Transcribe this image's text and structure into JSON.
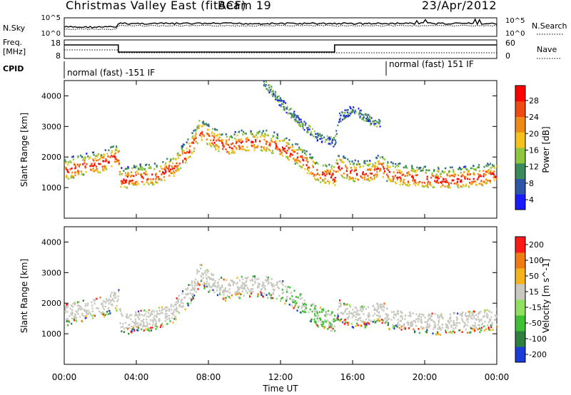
{
  "header": {
    "station": "Christmas Valley East (fitACF)",
    "beam": "Beam 19",
    "date": "23/Apr/2012"
  },
  "noise_panel": {
    "left_label": "N.Sky",
    "right_label": "N.Search",
    "left_ticks": [
      "10^5",
      "10^0"
    ],
    "right_ticks": [
      "10^5",
      "10^0"
    ]
  },
  "freq_panel": {
    "left_label_1": "Freq.",
    "left_label_2": "[MHz]",
    "right_label": "Nave",
    "left_ticks": [
      "18",
      "8"
    ],
    "right_ticks": [
      "60",
      "0"
    ]
  },
  "cpid": {
    "label": "CPID",
    "mode_1": "normal (fast) -151 IF",
    "mode_2": "normal (fast) 151 IF"
  },
  "x_axis": {
    "label": "Time UT",
    "ticks": [
      "00:00",
      "04:00",
      "08:00",
      "12:00",
      "16:00",
      "20:00",
      "00:00"
    ]
  },
  "power_panel": {
    "ylabel": "Slant Range [km]",
    "yticks": [
      "4000",
      "3000",
      "2000",
      "1000"
    ],
    "colorbar_label": "Power [dB]",
    "colorbar_ticks": [
      "28",
      "24",
      "20",
      "16",
      "12",
      "8",
      "4"
    ],
    "colors": [
      "#1a1aff",
      "#2f57a8",
      "#3a8c5a",
      "#8ec63f",
      "#f4c21b",
      "#f08a16",
      "#ee4a12",
      "#ff0000"
    ]
  },
  "velocity_panel": {
    "ylabel": "Slant Range [km]",
    "yticks": [
      "4000",
      "3000",
      "2000",
      "1000"
    ],
    "colorbar_label": "Velocity [m s^-1]",
    "colorbar_ticks": [
      "200",
      "100",
      "50",
      "15",
      "-15",
      "-50",
      "-100",
      "-200"
    ],
    "colors": [
      "#1a3cd9",
      "#2f7f3f",
      "#3fbf33",
      "#90e060",
      "#c8c8c0",
      "#f5b21a",
      "#f07b12",
      "#ff1a1a"
    ]
  },
  "chart_data": [
    {
      "type": "heatmap",
      "title": "Power",
      "xlabel": "Time UT",
      "ylabel": "Slant Range [km]",
      "xlim_hours": [
        0,
        24
      ],
      "ylim_km": [
        0,
        4500
      ],
      "colorbar": "Power [dB]",
      "colorbar_range": [
        0,
        32
      ],
      "band_main_km": [
        [
          0,
          1700
        ],
        [
          1,
          1850
        ],
        [
          2,
          1950
        ],
        [
          3,
          2200
        ],
        [
          3.1,
          1400
        ],
        [
          4,
          1500
        ],
        [
          5,
          1550
        ],
        [
          6,
          1800
        ],
        [
          7,
          2450
        ],
        [
          7.5,
          3050
        ],
        [
          8,
          2800
        ],
        [
          9,
          2500
        ],
        [
          10,
          2650
        ],
        [
          11,
          2650
        ],
        [
          12,
          2500
        ],
        [
          13,
          2150
        ],
        [
          14,
          1650
        ],
        [
          15,
          1500
        ],
        [
          15.1,
          1900
        ],
        [
          15.5,
          1750
        ],
        [
          16,
          1650
        ],
        [
          17,
          1650
        ],
        [
          17.5,
          1850
        ],
        [
          18,
          1600
        ],
        [
          19,
          1500
        ],
        [
          20,
          1450
        ],
        [
          21,
          1400
        ],
        [
          22,
          1450
        ],
        [
          23,
          1500
        ],
        [
          24,
          1600
        ]
      ],
      "band_upper_km": [
        [
          11,
          4500
        ],
        [
          12,
          3800
        ],
        [
          13,
          3200
        ],
        [
          14,
          2700
        ],
        [
          15,
          2500
        ],
        [
          15.2,
          3300
        ],
        [
          16,
          3600
        ],
        [
          17,
          3200
        ],
        [
          17.5,
          3100
        ]
      ]
    },
    {
      "type": "heatmap",
      "title": "Velocity",
      "xlabel": "Time UT",
      "ylabel": "Slant Range [km]",
      "xlim_hours": [
        0,
        24
      ],
      "ylim_km": [
        0,
        4500
      ],
      "colorbar": "Velocity [m s^-1]",
      "colorbar_range": [
        -200,
        200
      ],
      "band_main_km": [
        [
          0,
          1700
        ],
        [
          1,
          1850
        ],
        [
          2,
          1950
        ],
        [
          3,
          2200
        ],
        [
          3.1,
          1400
        ],
        [
          4,
          1500
        ],
        [
          5,
          1550
        ],
        [
          6,
          1800
        ],
        [
          7,
          2450
        ],
        [
          7.5,
          3050
        ],
        [
          8,
          2800
        ],
        [
          9,
          2500
        ],
        [
          10,
          2650
        ],
        [
          11,
          2650
        ],
        [
          12,
          2500
        ],
        [
          13,
          2150
        ],
        [
          14,
          1650
        ],
        [
          15,
          1500
        ],
        [
          15.1,
          1900
        ],
        [
          15.5,
          1750
        ],
        [
          16,
          1650
        ],
        [
          17,
          1650
        ],
        [
          17.5,
          1850
        ],
        [
          18,
          1600
        ],
        [
          19,
          1500
        ],
        [
          20,
          1450
        ],
        [
          21,
          1400
        ],
        [
          22,
          1450
        ],
        [
          23,
          1500
        ],
        [
          24,
          1600
        ]
      ]
    }
  ]
}
